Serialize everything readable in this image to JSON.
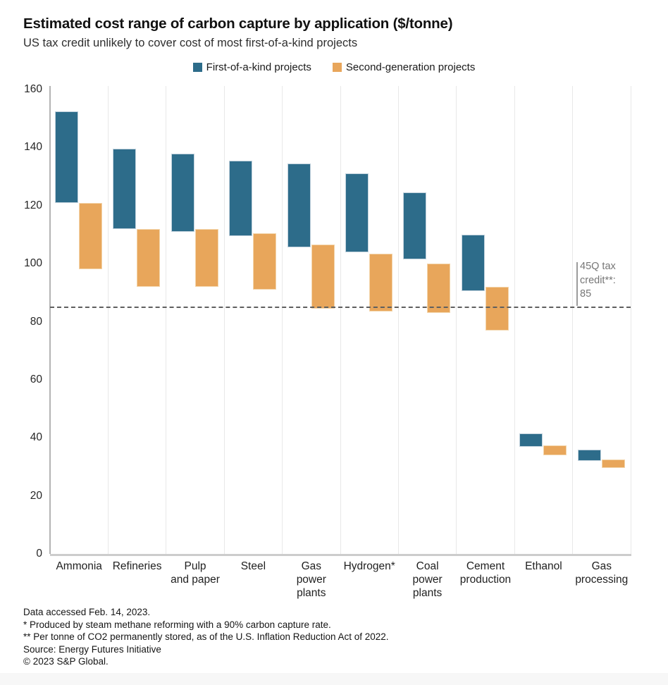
{
  "header": {
    "title": "Estimated cost range of carbon capture by application ($/tonne)",
    "subtitle": "US tax credit unlikely to cover cost of most first-of-a-kind projects"
  },
  "legend": {
    "items": [
      {
        "label": "First-of-a-kind projects",
        "color": "#2d6c8a"
      },
      {
        "label": "Second-generation projects",
        "color": "#e8a65b"
      }
    ]
  },
  "annotation": {
    "lines": [
      "45Q tax",
      "credit**:",
      "85"
    ],
    "value": 85
  },
  "footnotes": [
    "Data accessed Feb. 14, 2023.",
    "* Produced by steam methane reforming with a 90% carbon capture rate.",
    "** Per tonne of CO2 permanently stored, as of the U.S. Inflation Reduction Act of 2022.",
    "Source: Energy Futures Initiative",
    "© 2023 S&P Global."
  ],
  "chart_data": {
    "type": "bar",
    "variant": "floating-range-columns",
    "title": "Estimated cost range of carbon capture by application ($/tonne)",
    "subtitle": "US tax credit unlikely to cover cost of most first-of-a-kind projects",
    "unit": "$/tonne",
    "categories": [
      "Ammonia",
      "Refineries",
      "Pulp\nand paper",
      "Steel",
      "Gas\npower\nplants",
      "Hydrogen*",
      "Coal\npower\nplants",
      "Cement\nproduction",
      "Ethanol",
      "Gas\nprocessing"
    ],
    "series": [
      {
        "name": "First-of-a-kind projects",
        "color": "#2d6c8a",
        "border_color": "#c2d2dd",
        "ranges": [
          [
            121,
            152.5
          ],
          [
            112,
            139.5
          ],
          [
            111,
            138
          ],
          [
            109.5,
            135.5
          ],
          [
            105.5,
            134.5
          ],
          [
            104,
            131
          ],
          [
            101.5,
            124.5
          ],
          [
            90.5,
            110
          ],
          [
            37,
            41.5
          ],
          [
            32,
            36
          ]
        ]
      },
      {
        "name": "Second-generation projects",
        "color": "#e8a65b",
        "border_color": "#f3d5ab",
        "ranges": [
          [
            98,
            121
          ],
          [
            92,
            112
          ],
          [
            92,
            112
          ],
          [
            91,
            110.5
          ],
          [
            84.5,
            106.5
          ],
          [
            83.5,
            103.5
          ],
          [
            83,
            100
          ],
          [
            77,
            92
          ],
          [
            34,
            37.5
          ],
          [
            29.5,
            32.5
          ]
        ]
      }
    ],
    "yticks": [
      0,
      20,
      40,
      60,
      80,
      100,
      120,
      140,
      160
    ],
    "ylim": [
      0,
      160
    ],
    "reference_line": {
      "value": 85,
      "label": "45Q tax credit**: 85",
      "style": "dashed"
    },
    "grid": "vertical-category-separators",
    "legend_position": "top-center"
  }
}
